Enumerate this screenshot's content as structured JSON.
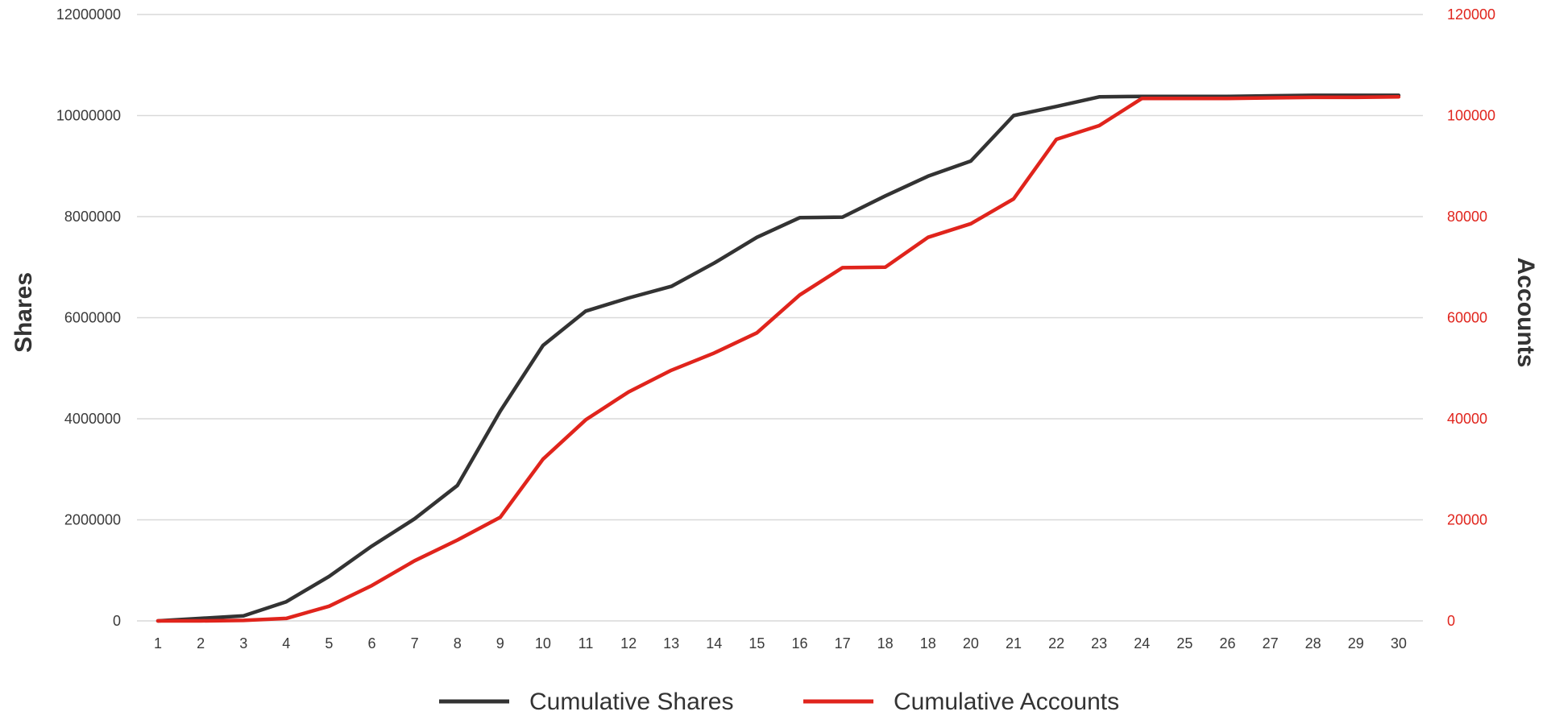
{
  "chart_data": {
    "type": "line",
    "title": "",
    "xlabel": "",
    "ylabel_left": "Shares",
    "ylabel_right": "Accounts",
    "categories": [
      "1",
      "2",
      "3",
      "4",
      "5",
      "6",
      "7",
      "8",
      "9",
      "10",
      "11",
      "12",
      "13",
      "14",
      "15",
      "16",
      "17",
      "18",
      "18",
      "20",
      "21",
      "22",
      "23",
      "24",
      "25",
      "26",
      "27",
      "28",
      "29",
      "30"
    ],
    "y_left": {
      "min": 0,
      "max": 12000000,
      "ticks": [
        "0",
        "2000000",
        "4000000",
        "6000000",
        "8000000",
        "10000000",
        "12000000"
      ]
    },
    "y_right": {
      "min": 0,
      "max": 120000,
      "ticks": [
        "0",
        "20000",
        "40000",
        "60000",
        "80000",
        "100000",
        "120000"
      ]
    },
    "grid": true,
    "legend_position": "bottom",
    "series": [
      {
        "name": "Cumulative Shares",
        "axis": "left",
        "color": "#333333",
        "values": [
          0,
          50000,
          100000,
          380000,
          880000,
          1480000,
          2020000,
          2680000,
          4150000,
          5450000,
          6130000,
          6390000,
          6620000,
          7080000,
          7590000,
          7980000,
          7990000,
          8410000,
          8800000,
          9100000,
          10000000,
          10180000,
          10370000,
          10380000,
          10380000,
          10380000,
          10390000,
          10400000,
          10400000,
          10400000
        ]
      },
      {
        "name": "Cumulative Accounts",
        "axis": "right",
        "color": "#e0241c",
        "values": [
          0,
          0,
          100,
          500,
          2900,
          7000,
          11900,
          16000,
          20500,
          32000,
          39800,
          45300,
          49600,
          53000,
          57000,
          64500,
          69900,
          70000,
          75900,
          78600,
          83500,
          95300,
          98000,
          103400,
          103400,
          103400,
          103500,
          103600,
          103600,
          103700
        ]
      }
    ]
  }
}
